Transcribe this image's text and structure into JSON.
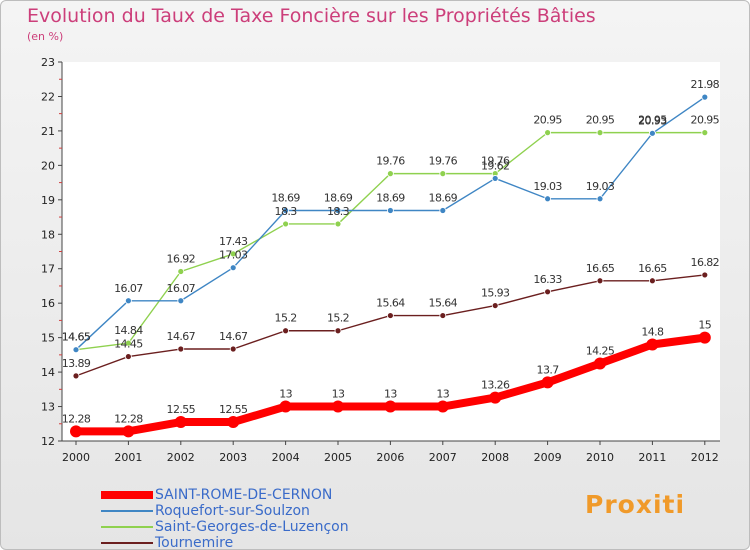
{
  "chart_title": "Evolution du Taux de Taxe Foncière sur les Propriétés Bâties",
  "chart_subtitle": "(en %)",
  "logo_text": "Proxiti",
  "chart_data": {
    "type": "line",
    "title": "Evolution du Taux de Taxe Foncière sur les Propriétés Bâties",
    "ylabel": "(en %)",
    "xlabel": "",
    "x": [
      2000,
      2001,
      2002,
      2003,
      2004,
      2005,
      2006,
      2007,
      2008,
      2009,
      2010,
      2011,
      2012
    ],
    "ylim": [
      12,
      23
    ],
    "yticks": [
      12,
      13,
      14,
      15,
      16,
      17,
      18,
      19,
      20,
      21,
      22,
      23
    ],
    "grid": false,
    "legend_position": "bottom-left",
    "series": [
      {
        "name": "SAINT-ROME-DE-CERNON",
        "color": "#ff0000",
        "values": [
          12.28,
          12.28,
          12.55,
          12.55,
          13,
          13,
          13,
          13,
          13.26,
          13.7,
          14.25,
          14.8,
          15
        ]
      },
      {
        "name": "Roquefort-sur-Soulzon",
        "color": "#3f86c4",
        "values": [
          14.65,
          16.07,
          16.07,
          17.03,
          18.69,
          18.69,
          18.69,
          18.69,
          19.62,
          19.03,
          19.03,
          20.93,
          21.98
        ]
      },
      {
        "name": "Saint-Georges-de-Luzençon",
        "color": "#8fd14f",
        "values": [
          14.65,
          14.84,
          16.92,
          17.43,
          18.3,
          18.3,
          19.76,
          19.76,
          19.76,
          20.95,
          20.95,
          20.95,
          20.95
        ]
      },
      {
        "name": "Tournemire",
        "color": "#6b1f1f",
        "values": [
          13.89,
          14.45,
          14.67,
          14.67,
          15.2,
          15.2,
          15.64,
          15.64,
          15.93,
          16.33,
          16.65,
          16.65,
          16.82
        ]
      }
    ]
  }
}
